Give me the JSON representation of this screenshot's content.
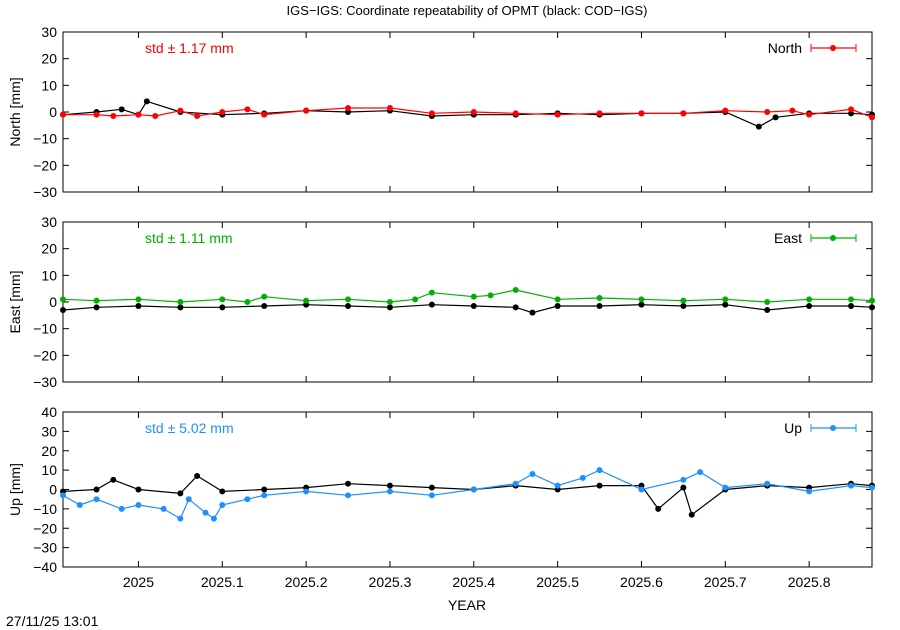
{
  "title": "IGS−IGS: Coordinate repeatability of OPMT (black: COD−IGS)",
  "xlabel": "YEAR",
  "timestamp": "27/11/25 13:01",
  "chart_data": {
    "type": "line",
    "x_ticks": [
      "2025",
      "2025.1",
      "2025.2",
      "2025.3",
      "2025.4",
      "2025.5",
      "2025.6",
      "2025.7",
      "2025.8"
    ],
    "xlim": [
      2024.91,
      2025.875
    ],
    "grid": false,
    "legend_position": "top-right",
    "panels": [
      {
        "ylabel": "North [mm]",
        "ylim": [
          -30,
          30
        ],
        "yticks": [
          30,
          20,
          10,
          0,
          -10,
          -20,
          -30
        ],
        "std_text": "std ± 1.17 mm",
        "color": "#ff0000",
        "series": [
          {
            "name": "North",
            "x": [
              2024.91,
              2024.95,
              2024.97,
              2025.0,
              2025.02,
              2025.05,
              2025.07,
              2025.1,
              2025.13,
              2025.15,
              2025.2,
              2025.25,
              2025.3,
              2025.35,
              2025.4,
              2025.45,
              2025.5,
              2025.55,
              2025.6,
              2025.65,
              2025.7,
              2025.75,
              2025.78,
              2025.8,
              2025.85,
              2025.875
            ],
            "y": [
              -1,
              -1,
              -1.5,
              -1,
              -1.5,
              0.5,
              -1.5,
              0,
              1,
              -1,
              0.5,
              1.5,
              1.5,
              -0.5,
              0,
              -0.5,
              -1,
              -0.5,
              -0.5,
              -0.5,
              0.5,
              0,
              0.5,
              -1,
              1,
              -2
            ]
          },
          {
            "name": "COD−IGS",
            "x": [
              2024.91,
              2024.95,
              2024.98,
              2025.0,
              2025.01,
              2025.05,
              2025.1,
              2025.15,
              2025.2,
              2025.25,
              2025.3,
              2025.35,
              2025.4,
              2025.45,
              2025.5,
              2025.55,
              2025.6,
              2025.65,
              2025.7,
              2025.74,
              2025.76,
              2025.8,
              2025.85,
              2025.875
            ],
            "y": [
              -1,
              0,
              1,
              -1,
              4,
              0,
              -1,
              -0.5,
              0.5,
              0,
              0.5,
              -1.5,
              -1,
              -1,
              -0.5,
              -1,
              -0.5,
              -0.5,
              0,
              -5.5,
              -2,
              -0.5,
              -0.5,
              -1
            ]
          }
        ]
      },
      {
        "ylabel": "East [mm]",
        "ylim": [
          -30,
          30
        ],
        "yticks": [
          30,
          20,
          10,
          0,
          -10,
          -20,
          -30
        ],
        "std_text": "std ± 1.11 mm",
        "color": "#00b000",
        "series": [
          {
            "name": "East",
            "x": [
              2024.91,
              2024.95,
              2025.0,
              2025.05,
              2025.1,
              2025.13,
              2025.15,
              2025.2,
              2025.25,
              2025.3,
              2025.33,
              2025.35,
              2025.4,
              2025.42,
              2025.45,
              2025.5,
              2025.55,
              2025.6,
              2025.65,
              2025.7,
              2025.75,
              2025.8,
              2025.85,
              2025.875
            ],
            "y": [
              1,
              0.5,
              1,
              0,
              1,
              0,
              2,
              0.5,
              1,
              0,
              1,
              3.5,
              2,
              2.5,
              4.5,
              1,
              1.5,
              1,
              0.5,
              1,
              0,
              1,
              1,
              0.5
            ]
          },
          {
            "name": "COD−IGS",
            "x": [
              2024.91,
              2024.95,
              2025.0,
              2025.05,
              2025.1,
              2025.15,
              2025.2,
              2025.25,
              2025.3,
              2025.35,
              2025.4,
              2025.45,
              2025.47,
              2025.5,
              2025.55,
              2025.6,
              2025.65,
              2025.7,
              2025.75,
              2025.8,
              2025.85,
              2025.875
            ],
            "y": [
              -3,
              -2,
              -1.5,
              -2,
              -2,
              -1.5,
              -1,
              -1.5,
              -2,
              -1,
              -1.5,
              -2,
              -4,
              -1.5,
              -1.5,
              -1,
              -1.5,
              -1,
              -3,
              -1.5,
              -1.5,
              -2
            ]
          }
        ]
      },
      {
        "ylabel": "Up [mm]",
        "ylim": [
          -40,
          40
        ],
        "yticks": [
          40,
          30,
          20,
          10,
          0,
          -10,
          -20,
          -30,
          -40
        ],
        "std_text": "std ± 5.02 mm",
        "color": "#1e90ff",
        "series": [
          {
            "name": "Up",
            "x": [
              2024.91,
              2024.93,
              2024.95,
              2024.98,
              2025.0,
              2025.03,
              2025.05,
              2025.06,
              2025.08,
              2025.09,
              2025.1,
              2025.13,
              2025.15,
              2025.2,
              2025.25,
              2025.3,
              2025.35,
              2025.4,
              2025.45,
              2025.47,
              2025.5,
              2025.53,
              2025.55,
              2025.6,
              2025.65,
              2025.67,
              2025.7,
              2025.75,
              2025.8,
              2025.85,
              2025.875
            ],
            "y": [
              -3,
              -8,
              -5,
              -10,
              -8,
              -10,
              -15,
              -5,
              -12,
              -15,
              -8,
              -5,
              -3,
              -1,
              -3,
              -1,
              -3,
              0,
              3,
              8,
              2,
              6,
              10,
              0,
              5,
              9,
              1,
              3,
              -1,
              2,
              1
            ]
          },
          {
            "name": "COD−IGS",
            "x": [
              2024.91,
              2024.95,
              2024.97,
              2025.0,
              2025.05,
              2025.07,
              2025.1,
              2025.15,
              2025.2,
              2025.25,
              2025.3,
              2025.35,
              2025.4,
              2025.45,
              2025.5,
              2025.55,
              2025.6,
              2025.62,
              2025.65,
              2025.66,
              2025.7,
              2025.75,
              2025.8,
              2025.85,
              2025.875
            ],
            "y": [
              -1,
              0,
              5,
              0,
              -2,
              7,
              -1,
              0,
              1,
              3,
              2,
              1,
              0,
              2,
              0,
              2,
              2,
              -10,
              1,
              -13,
              0,
              2,
              1,
              3,
              2
            ]
          }
        ]
      }
    ]
  }
}
